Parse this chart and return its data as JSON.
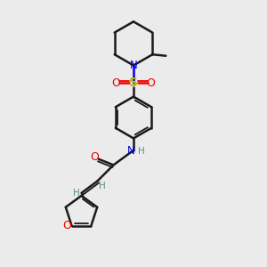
{
  "bg_color": "#ebebeb",
  "bond_color": "#1a1a1a",
  "N_color": "#0000ee",
  "O_color": "#ee0000",
  "S_color": "#bbbb00",
  "H_color": "#5a8a8a",
  "figsize": [
    3.0,
    3.0
  ],
  "dpi": 100,
  "xlim": [
    0,
    10
  ],
  "ylim": [
    0,
    10
  ]
}
